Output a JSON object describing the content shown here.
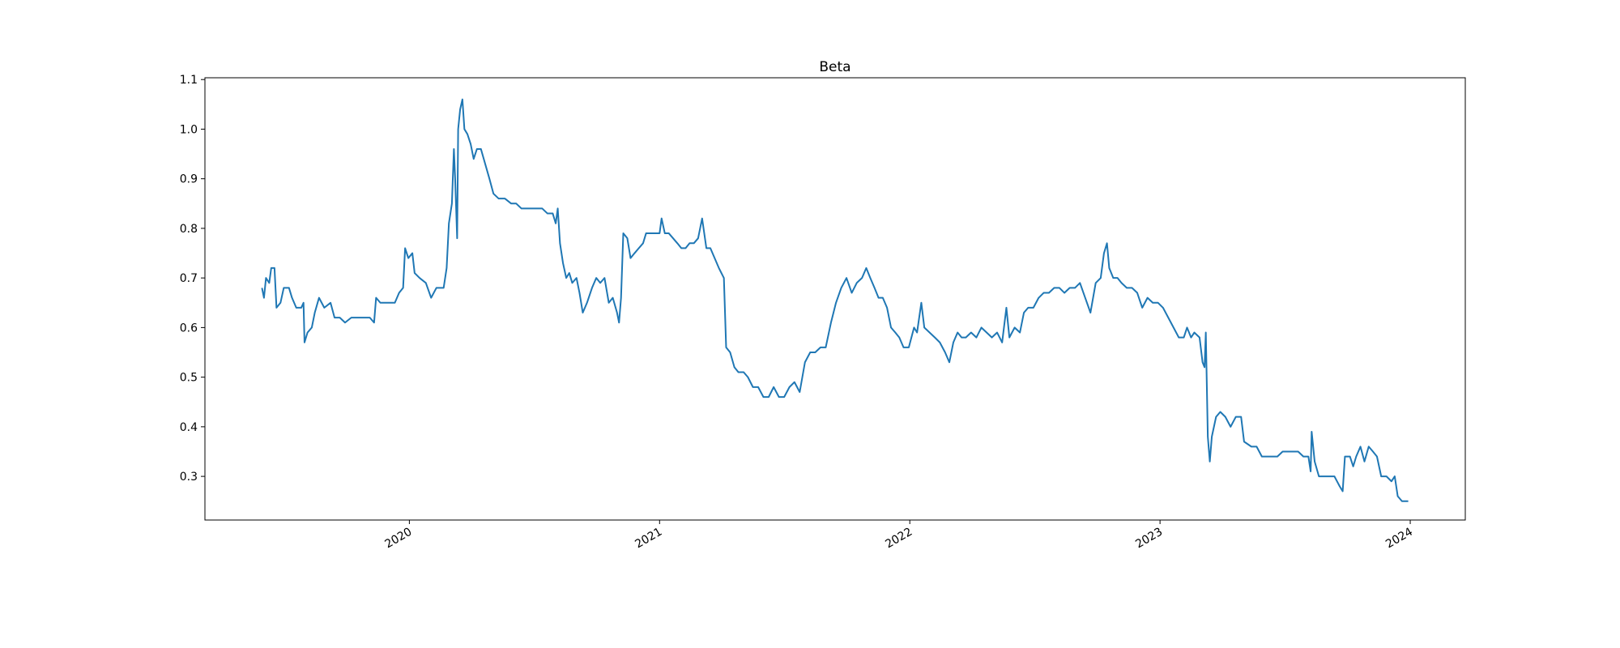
{
  "chart_data": {
    "type": "line",
    "title": "Beta",
    "color": "#1f77b4",
    "x": [
      2019.411,
      2019.419,
      2019.427,
      2019.44,
      2019.448,
      2019.461,
      2019.469,
      2019.485,
      2019.498,
      2019.519,
      2019.531,
      2019.548,
      2019.568,
      2019.577,
      2019.581,
      2019.593,
      2019.61,
      2019.622,
      2019.639,
      2019.66,
      2019.685,
      2019.701,
      2019.722,
      2019.743,
      2019.768,
      2019.793,
      2019.817,
      2019.842,
      2019.859,
      2019.867,
      2019.884,
      2019.909,
      2019.942,
      2019.959,
      2019.975,
      2019.983,
      2019.996,
      2020.012,
      2020.021,
      2020.041,
      2020.066,
      2020.087,
      2020.108,
      2020.137,
      2020.149,
      2020.158,
      2020.17,
      2020.178,
      2020.183,
      2020.191,
      2020.195,
      2020.203,
      2020.212,
      2020.22,
      2020.232,
      2020.245,
      2020.257,
      2020.27,
      2020.286,
      2020.303,
      2020.32,
      2020.336,
      2020.357,
      2020.382,
      2020.407,
      2020.427,
      2020.448,
      2020.469,
      2020.49,
      2020.51,
      2020.531,
      2020.552,
      2020.573,
      2020.585,
      2020.593,
      2020.602,
      2020.614,
      2020.627,
      2020.639,
      2020.651,
      2020.668,
      2020.68,
      2020.693,
      2020.71,
      2020.73,
      2020.747,
      2020.763,
      2020.78,
      2020.797,
      2020.813,
      2020.83,
      2020.838,
      2020.846,
      2020.855,
      2020.871,
      2020.884,
      2020.9,
      2020.917,
      2020.934,
      2020.946,
      2020.963,
      2020.983,
      2021.0,
      2021.008,
      2021.021,
      2021.037,
      2021.054,
      2021.071,
      2021.087,
      2021.104,
      2021.12,
      2021.137,
      2021.154,
      2021.17,
      2021.187,
      2021.203,
      2021.22,
      2021.237,
      2021.257,
      2021.266,
      2021.282,
      2021.299,
      2021.315,
      2021.336,
      2021.353,
      2021.373,
      2021.394,
      2021.415,
      2021.436,
      2021.456,
      2021.477,
      2021.498,
      2021.519,
      2021.539,
      2021.56,
      2021.581,
      2021.602,
      2021.622,
      2021.643,
      2021.664,
      2021.685,
      2021.705,
      2021.726,
      2021.747,
      2021.768,
      2021.788,
      2021.809,
      2021.826,
      2021.842,
      2021.859,
      2021.875,
      2021.892,
      2021.909,
      2021.925,
      2021.942,
      2021.958,
      2021.975,
      2021.996,
      2022.017,
      2022.029,
      2022.046,
      2022.058,
      2022.079,
      2022.1,
      2022.12,
      2022.141,
      2022.158,
      2022.174,
      2022.191,
      2022.207,
      2022.224,
      2022.245,
      2022.266,
      2022.286,
      2022.307,
      2022.328,
      2022.349,
      2022.369,
      2022.386,
      2022.398,
      2022.419,
      2022.44,
      2022.456,
      2022.473,
      2022.494,
      2022.515,
      2022.535,
      2022.556,
      2022.577,
      2022.598,
      2022.618,
      2022.639,
      2022.66,
      2022.68,
      2022.701,
      2022.722,
      2022.743,
      2022.763,
      2022.776,
      2022.788,
      2022.797,
      2022.813,
      2022.83,
      2022.846,
      2022.867,
      2022.888,
      2022.909,
      2022.929,
      2022.95,
      2022.971,
      2022.992,
      2023.012,
      2023.033,
      2023.054,
      2023.075,
      2023.095,
      2023.108,
      2023.124,
      2023.137,
      2023.158,
      2023.17,
      2023.178,
      2023.183,
      2023.191,
      2023.199,
      2023.207,
      2023.224,
      2023.241,
      2023.261,
      2023.282,
      2023.303,
      2023.324,
      2023.336,
      2023.365,
      2023.386,
      2023.407,
      2023.427,
      2023.448,
      2023.469,
      2023.49,
      2023.51,
      2023.531,
      2023.552,
      2023.573,
      2023.593,
      2023.602,
      2023.606,
      2023.618,
      2023.635,
      2023.656,
      2023.676,
      2023.697,
      2023.718,
      2023.73,
      2023.739,
      2023.759,
      2023.772,
      2023.784,
      2023.801,
      2023.817,
      2023.834,
      2023.851,
      2023.867,
      2023.884,
      2023.905,
      2023.925,
      2023.938,
      2023.95,
      2023.967,
      2023.992
    ],
    "values": [
      0.68,
      0.66,
      0.7,
      0.69,
      0.72,
      0.72,
      0.64,
      0.65,
      0.68,
      0.68,
      0.66,
      0.64,
      0.64,
      0.65,
      0.57,
      0.59,
      0.6,
      0.63,
      0.66,
      0.64,
      0.65,
      0.62,
      0.62,
      0.61,
      0.62,
      0.62,
      0.62,
      0.62,
      0.61,
      0.66,
      0.65,
      0.65,
      0.65,
      0.67,
      0.68,
      0.76,
      0.74,
      0.75,
      0.71,
      0.7,
      0.69,
      0.66,
      0.68,
      0.68,
      0.72,
      0.81,
      0.85,
      0.96,
      0.9,
      0.78,
      1.0,
      1.04,
      1.06,
      1.0,
      0.99,
      0.97,
      0.94,
      0.96,
      0.96,
      0.93,
      0.9,
      0.87,
      0.86,
      0.86,
      0.85,
      0.85,
      0.84,
      0.84,
      0.84,
      0.84,
      0.84,
      0.83,
      0.83,
      0.81,
      0.84,
      0.77,
      0.73,
      0.7,
      0.71,
      0.69,
      0.7,
      0.67,
      0.63,
      0.65,
      0.68,
      0.7,
      0.69,
      0.7,
      0.65,
      0.66,
      0.63,
      0.61,
      0.66,
      0.79,
      0.78,
      0.74,
      0.75,
      0.76,
      0.77,
      0.79,
      0.79,
      0.79,
      0.79,
      0.82,
      0.79,
      0.79,
      0.78,
      0.77,
      0.76,
      0.76,
      0.77,
      0.77,
      0.78,
      0.82,
      0.76,
      0.76,
      0.74,
      0.72,
      0.7,
      0.56,
      0.55,
      0.52,
      0.51,
      0.51,
      0.5,
      0.48,
      0.48,
      0.46,
      0.46,
      0.48,
      0.46,
      0.46,
      0.48,
      0.49,
      0.47,
      0.53,
      0.55,
      0.55,
      0.56,
      0.56,
      0.61,
      0.65,
      0.68,
      0.7,
      0.67,
      0.69,
      0.7,
      0.72,
      0.7,
      0.68,
      0.66,
      0.66,
      0.64,
      0.6,
      0.59,
      0.58,
      0.56,
      0.56,
      0.6,
      0.59,
      0.65,
      0.6,
      0.59,
      0.58,
      0.57,
      0.55,
      0.53,
      0.57,
      0.59,
      0.58,
      0.58,
      0.59,
      0.58,
      0.6,
      0.59,
      0.58,
      0.59,
      0.57,
      0.64,
      0.58,
      0.6,
      0.59,
      0.63,
      0.64,
      0.64,
      0.66,
      0.67,
      0.67,
      0.68,
      0.68,
      0.67,
      0.68,
      0.68,
      0.69,
      0.66,
      0.63,
      0.69,
      0.7,
      0.75,
      0.77,
      0.72,
      0.7,
      0.7,
      0.69,
      0.68,
      0.68,
      0.67,
      0.64,
      0.66,
      0.65,
      0.65,
      0.64,
      0.62,
      0.6,
      0.58,
      0.58,
      0.6,
      0.58,
      0.59,
      0.58,
      0.53,
      0.52,
      0.59,
      0.38,
      0.33,
      0.38,
      0.42,
      0.43,
      0.42,
      0.4,
      0.42,
      0.42,
      0.37,
      0.36,
      0.36,
      0.34,
      0.34,
      0.34,
      0.34,
      0.35,
      0.35,
      0.35,
      0.35,
      0.34,
      0.34,
      0.31,
      0.39,
      0.33,
      0.3,
      0.3,
      0.3,
      0.3,
      0.28,
      0.27,
      0.34,
      0.34,
      0.32,
      0.34,
      0.36,
      0.33,
      0.36,
      0.35,
      0.34,
      0.3,
      0.3,
      0.29,
      0.3,
      0.26,
      0.25,
      0.25
    ],
    "xlim": [
      2019.183,
      2024.22
    ],
    "xticks": [
      2020,
      2021,
      2022,
      2023,
      2024
    ],
    "ylim": [
      0.212,
      1.1036
    ],
    "yticks": [
      0.3,
      0.4,
      0.5,
      0.6,
      0.7,
      0.8,
      0.9,
      {
        "value": 1,
        "label": "1.0"
      },
      1.1
    ]
  }
}
